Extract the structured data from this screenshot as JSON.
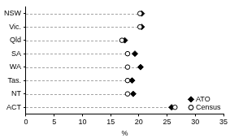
{
  "chart_data": {
    "type": "dot",
    "orientation": "horizontal",
    "categories": [
      "NSW",
      "Vic.",
      "Qld",
      "SA",
      "WA",
      "Tas.",
      "NT",
      "ACT"
    ],
    "series": [
      {
        "name": "ATO",
        "color": "#000000",
        "marker": "diamond",
        "values": [
          20.5,
          20.5,
          17.5,
          19.3,
          20.3,
          18.8,
          19.0,
          25.8
        ]
      },
      {
        "name": "Census",
        "color": "#000000",
        "marker": "open_circle",
        "values": [
          20.2,
          20.2,
          17.0,
          18.0,
          18.0,
          18.0,
          18.0,
          26.4
        ]
      }
    ],
    "x_label": "%",
    "xlim": [
      0,
      35
    ],
    "xticks": [
      0,
      5,
      10,
      15,
      20,
      25,
      30,
      35
    ],
    "grid": false,
    "legend": "lower right"
  }
}
